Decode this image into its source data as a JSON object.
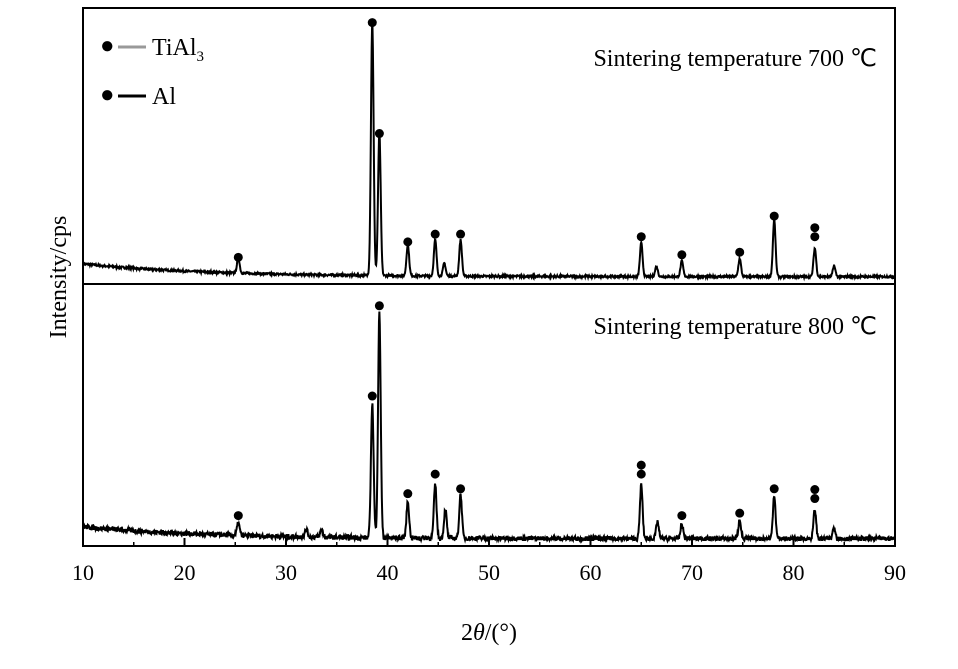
{
  "chart_data": {
    "type": "line",
    "xlabel_prefix": "2",
    "xlabel_theta": "θ",
    "xlabel_suffix": "/(°)",
    "ylabel": "Intensity/cps",
    "xlim": [
      10,
      90
    ],
    "x_ticks": [
      10,
      20,
      30,
      40,
      50,
      60,
      70,
      80,
      90
    ],
    "legend": [
      {
        "marker": "●",
        "label_main": "TiAl",
        "label_sub": "3",
        "line_color": "#999999"
      },
      {
        "marker": "●",
        "label_main": "Al",
        "label_sub": "",
        "line_color": "#000000"
      }
    ],
    "colors": {
      "trace": "#000000",
      "axis": "#000000"
    },
    "panels": [
      {
        "title": "Sintering temperature 700 ℃",
        "baseline_level": 0.05,
        "noise_level": 0.008,
        "peaks": [
          {
            "x": 25.3,
            "h": 0.06
          },
          {
            "x": 38.5,
            "h": 0.98
          },
          {
            "x": 39.2,
            "h": 0.55
          },
          {
            "x": 42.0,
            "h": 0.12
          },
          {
            "x": 44.7,
            "h": 0.14
          },
          {
            "x": 45.6,
            "h": 0.05
          },
          {
            "x": 47.2,
            "h": 0.14
          },
          {
            "x": 65.0,
            "h": 0.13
          },
          {
            "x": 66.5,
            "h": 0.04
          },
          {
            "x": 69.0,
            "h": 0.06
          },
          {
            "x": 74.7,
            "h": 0.07
          },
          {
            "x": 78.1,
            "h": 0.22
          },
          {
            "x": 82.1,
            "h": 0.11
          },
          {
            "x": 84.0,
            "h": 0.04
          }
        ],
        "markers": [
          {
            "x": 25.3,
            "y": 0.08,
            "n": 1
          },
          {
            "x": 38.5,
            "y": 0.99,
            "n": 1
          },
          {
            "x": 39.2,
            "y": 0.56,
            "n": 1
          },
          {
            "x": 42.0,
            "y": 0.14,
            "n": 1
          },
          {
            "x": 44.7,
            "y": 0.17,
            "n": 1
          },
          {
            "x": 47.2,
            "y": 0.17,
            "n": 1
          },
          {
            "x": 65.0,
            "y": 0.16,
            "n": 1
          },
          {
            "x": 69.0,
            "y": 0.09,
            "n": 1
          },
          {
            "x": 74.7,
            "y": 0.1,
            "n": 1
          },
          {
            "x": 78.1,
            "y": 0.24,
            "n": 1
          },
          {
            "x": 82.1,
            "y": 0.16,
            "n": 2
          }
        ]
      },
      {
        "title": "Sintering temperature 800 ℃",
        "baseline_level": 0.05,
        "noise_level": 0.02,
        "peaks": [
          {
            "x": 25.3,
            "h": 0.05
          },
          {
            "x": 32.0,
            "h": 0.03
          },
          {
            "x": 33.5,
            "h": 0.03
          },
          {
            "x": 38.5,
            "h": 0.55
          },
          {
            "x": 39.2,
            "h": 0.92
          },
          {
            "x": 42.0,
            "h": 0.15
          },
          {
            "x": 44.7,
            "h": 0.22
          },
          {
            "x": 45.7,
            "h": 0.12
          },
          {
            "x": 47.2,
            "h": 0.18
          },
          {
            "x": 65.0,
            "h": 0.22
          },
          {
            "x": 66.6,
            "h": 0.07
          },
          {
            "x": 69.0,
            "h": 0.06
          },
          {
            "x": 74.7,
            "h": 0.08
          },
          {
            "x": 78.1,
            "h": 0.18
          },
          {
            "x": 82.1,
            "h": 0.12
          },
          {
            "x": 84.0,
            "h": 0.05
          }
        ],
        "markers": [
          {
            "x": 25.3,
            "y": 0.1,
            "n": 1
          },
          {
            "x": 38.5,
            "y": 0.59,
            "n": 1
          },
          {
            "x": 39.2,
            "y": 0.96,
            "n": 1
          },
          {
            "x": 42.0,
            "y": 0.19,
            "n": 1
          },
          {
            "x": 44.7,
            "y": 0.27,
            "n": 1
          },
          {
            "x": 47.2,
            "y": 0.21,
            "n": 1
          },
          {
            "x": 65.0,
            "y": 0.27,
            "n": 2
          },
          {
            "x": 69.0,
            "y": 0.1,
            "n": 1
          },
          {
            "x": 74.7,
            "y": 0.11,
            "n": 1
          },
          {
            "x": 78.1,
            "y": 0.21,
            "n": 1
          },
          {
            "x": 82.1,
            "y": 0.17,
            "n": 2
          }
        ]
      }
    ]
  }
}
